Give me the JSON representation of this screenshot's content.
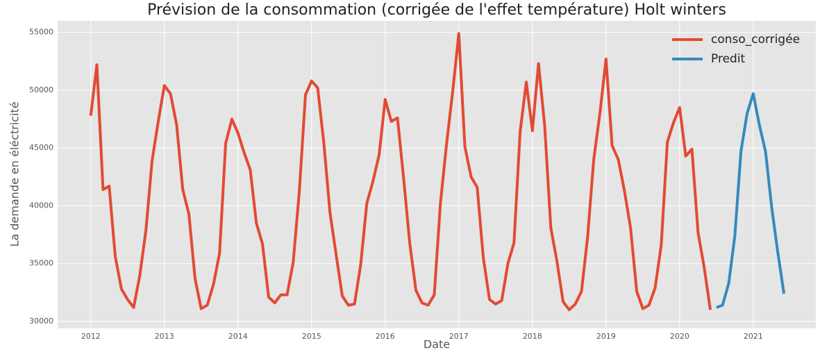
{
  "chart_data": {
    "type": "line",
    "title": "Prévision de la consommation (corrigée de l'effet température) Holt winters",
    "x_label": "Date",
    "y_label": "La demande en éléctricité",
    "xlim": [
      2011.55,
      2021.85
    ],
    "xticks": [
      2012,
      2013,
      2014,
      2015,
      2016,
      2017,
      2018,
      2019,
      2020,
      2021
    ],
    "ylim": [
      29400,
      56000
    ],
    "yticks": [
      30000,
      35000,
      40000,
      45000,
      50000,
      55000
    ],
    "grid": true,
    "legend": "upper right",
    "series": [
      {
        "name": "conso_corrigée",
        "color": "#E24A33",
        "x": [
          2012,
          2012.083,
          2012.167,
          2012.25,
          2012.333,
          2012.417,
          2012.5,
          2012.583,
          2012.667,
          2012.75,
          2012.833,
          2012.917,
          2013,
          2013.083,
          2013.167,
          2013.25,
          2013.333,
          2013.417,
          2013.5,
          2013.583,
          2013.667,
          2013.75,
          2013.833,
          2013.917,
          2014,
          2014.083,
          2014.167,
          2014.25,
          2014.333,
          2014.417,
          2014.5,
          2014.583,
          2014.667,
          2014.75,
          2014.833,
          2014.917,
          2015,
          2015.083,
          2015.167,
          2015.25,
          2015.333,
          2015.417,
          2015.5,
          2015.583,
          2015.667,
          2015.75,
          2015.833,
          2015.917,
          2016,
          2016.083,
          2016.167,
          2016.25,
          2016.333,
          2016.417,
          2016.5,
          2016.583,
          2016.667,
          2016.75,
          2016.833,
          2016.917,
          2017,
          2017.083,
          2017.167,
          2017.25,
          2017.333,
          2017.417,
          2017.5,
          2017.583,
          2017.667,
          2017.75,
          2017.833,
          2017.917,
          2018,
          2018.083,
          2018.167,
          2018.25,
          2018.333,
          2018.417,
          2018.5,
          2018.583,
          2018.667,
          2018.75,
          2018.833,
          2018.917,
          2019,
          2019.083,
          2019.167,
          2019.25,
          2019.333,
          2019.417,
          2019.5,
          2019.583,
          2019.667,
          2019.75,
          2019.833,
          2019.917,
          2020,
          2020.083,
          2020.167,
          2020.25,
          2020.333,
          2020.417
        ],
        "values": [
          47800,
          52200,
          41400,
          41700,
          35600,
          32800,
          31900,
          31200,
          34000,
          37900,
          43900,
          47300,
          50400,
          49700,
          47000,
          41400,
          39300,
          33700,
          31100,
          31400,
          33200,
          35900,
          45400,
          47500,
          46300,
          44600,
          43100,
          38500,
          36700,
          32100,
          31600,
          32300,
          32300,
          35100,
          41200,
          49600,
          50800,
          50200,
          45400,
          39400,
          35800,
          32200,
          31400,
          31500,
          34900,
          40200,
          42100,
          44400,
          49200,
          47300,
          47600,
          42400,
          36800,
          32700,
          31600,
          31400,
          32300,
          40200,
          45300,
          49900,
          54900,
          45100,
          42500,
          41600,
          35500,
          31900,
          31500,
          31800,
          35000,
          36800,
          46400,
          50700,
          46500,
          52300,
          46900,
          38100,
          35200,
          31700,
          31000,
          31500,
          32600,
          37300,
          44000,
          48000,
          52700,
          45200,
          44000,
          41300,
          38100,
          32600,
          31100,
          31400,
          32900,
          36600,
          45500,
          47200,
          48500,
          44300,
          44900,
          37700,
          34700,
          31000
        ]
      },
      {
        "name": "Predit",
        "color": "#348ABD",
        "x": [
          2020.5,
          2020.583,
          2020.667,
          2020.75,
          2020.833,
          2020.917,
          2021,
          2021.083,
          2021.167,
          2021.25,
          2021.333,
          2021.417
        ],
        "values": [
          31200,
          31400,
          33300,
          37400,
          44700,
          48000,
          49700,
          47000,
          44700,
          39900,
          36000,
          32400
        ]
      }
    ]
  }
}
